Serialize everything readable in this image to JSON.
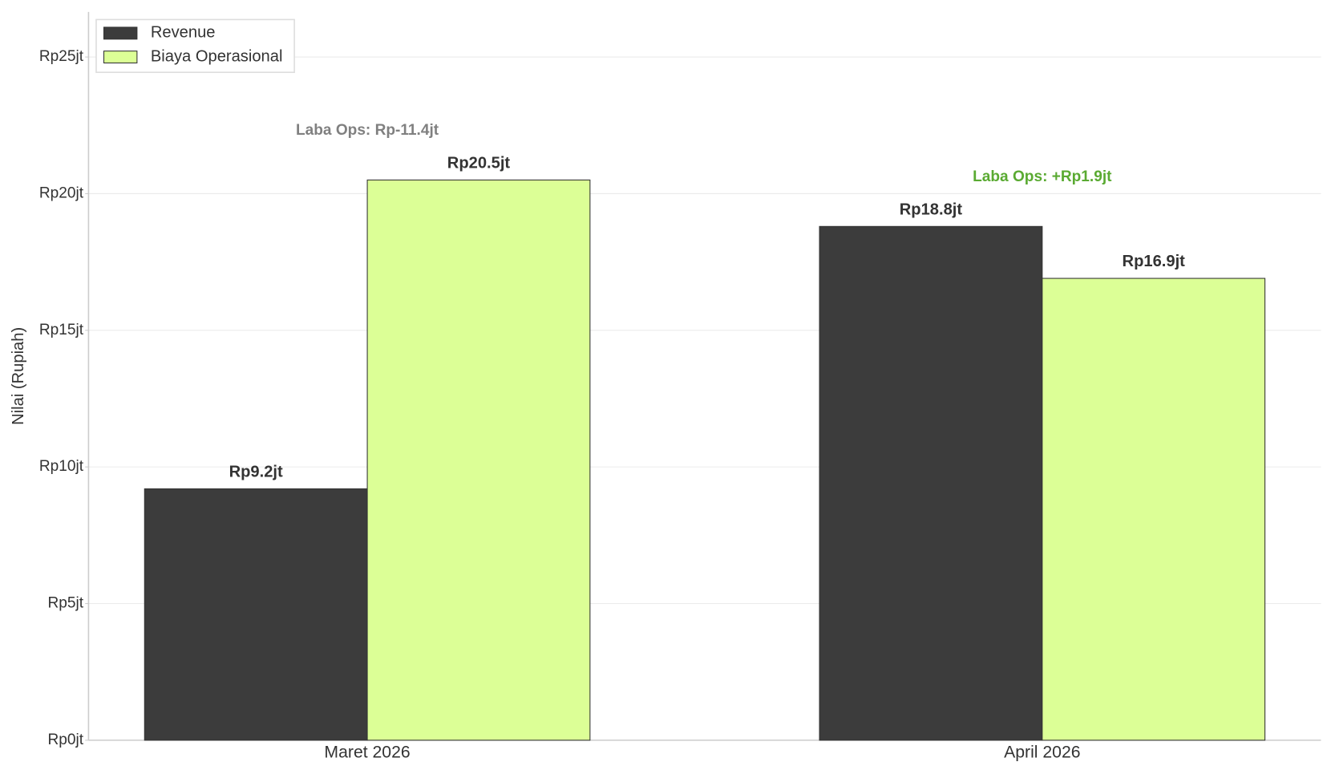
{
  "chart_data": {
    "type": "bar",
    "y_label": "Nilai (Rupiah)",
    "categories": [
      "Maret 2026",
      "April 2026"
    ],
    "series": [
      {
        "name": "Revenue",
        "color": "#3c3c3c",
        "values": [
          9.2,
          18.8
        ],
        "value_labels": [
          "Rp9.2jt",
          "Rp18.8jt"
        ]
      },
      {
        "name": "Biaya Operasional",
        "color": "#dcff96",
        "values": [
          20.5,
          16.9
        ],
        "value_labels": [
          "Rp20.5jt",
          "Rp16.9jt"
        ]
      }
    ],
    "annotations": [
      {
        "text": "Laba Ops: Rp-11.4jt",
        "color": "#808080"
      },
      {
        "text": "Laba Ops: +Rp1.9jt",
        "color": "#5aaa32"
      }
    ],
    "ylim": [
      0,
      26.65
    ],
    "yticks": [
      {
        "value": 0,
        "label": "Rp0jt"
      },
      {
        "value": 5,
        "label": "Rp5jt"
      },
      {
        "value": 10,
        "label": "Rp10jt"
      },
      {
        "value": 15,
        "label": "Rp15jt"
      },
      {
        "value": 20,
        "label": "Rp20jt"
      },
      {
        "value": 25,
        "label": "Rp25jt"
      }
    ],
    "grid": true,
    "legend": "upper-left"
  }
}
